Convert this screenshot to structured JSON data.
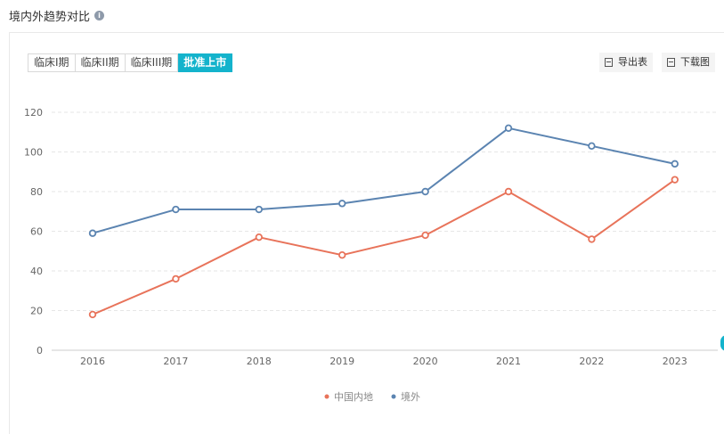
{
  "page": {
    "title": "境内外趋势对比",
    "info_icon": "info-icon"
  },
  "tabs": [
    {
      "label": "临床I期",
      "active": false
    },
    {
      "label": "临床II期",
      "active": false
    },
    {
      "label": "临床III期",
      "active": false
    },
    {
      "label": "批准上市",
      "active": true
    }
  ],
  "toolbar": {
    "export_label": "导出表",
    "download_label": "下载图"
  },
  "colors": {
    "accent": "#14b3cc",
    "domestic": "#e8735a",
    "overseas": "#5b84b1"
  },
  "chart_data": {
    "type": "line",
    "title": "",
    "xlabel": "",
    "ylabel": "",
    "categories": [
      "2016",
      "2017",
      "2018",
      "2019",
      "2020",
      "2021",
      "2022",
      "2023"
    ],
    "ylim": [
      0,
      120
    ],
    "yticks": [
      0,
      20,
      40,
      60,
      80,
      100,
      120
    ],
    "grid": true,
    "legend_position": "bottom-center",
    "series": [
      {
        "name": "中国内地",
        "color": "#e8735a",
        "values": [
          18,
          36,
          57,
          48,
          58,
          80,
          56,
          86
        ]
      },
      {
        "name": "境外",
        "color": "#5b84b1",
        "values": [
          59,
          71,
          71,
          74,
          80,
          112,
          103,
          94
        ]
      }
    ]
  }
}
